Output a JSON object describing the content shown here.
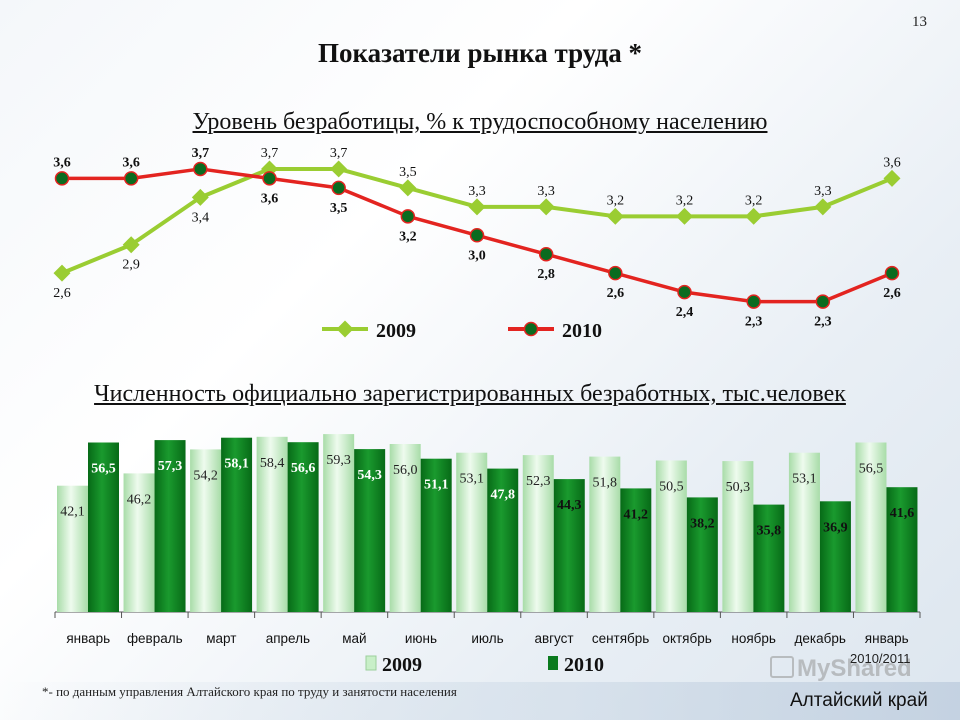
{
  "slide": {
    "page_number": "13",
    "title": "Показатели рынка труда *",
    "footnote": "*- по данным управления Алтайского края по труду и занятости населения",
    "region": "Алтайский край",
    "period": "2010/2011",
    "watermark": "MyShared"
  },
  "chart_data": [
    {
      "type": "line",
      "title": "Уровень безработицы, % к трудоспособному населению",
      "x": [
        "январь",
        "февраль",
        "март",
        "апрель",
        "май",
        "июнь",
        "июль",
        "август",
        "сентябрь",
        "октябрь",
        "ноябрь",
        "декабрь",
        "январь"
      ],
      "ylim": [
        2.0,
        3.9
      ],
      "grid": false,
      "legend": "bottom",
      "series": [
        {
          "name": "2009",
          "color": "#9acd32",
          "values": [
            2.6,
            2.9,
            3.4,
            3.7,
            3.7,
            3.5,
            3.3,
            3.3,
            3.2,
            3.2,
            3.2,
            3.3,
            3.6
          ],
          "labels": [
            "2,6",
            "2,9",
            "3,4",
            "3,7",
            "3,7",
            "3,5",
            "3,3",
            "3,3",
            "3,2",
            "3,2",
            "3,2",
            "3,3",
            "3,6"
          ]
        },
        {
          "name": "2010",
          "color": "#e32420",
          "values": [
            3.6,
            3.6,
            3.7,
            3.6,
            3.5,
            3.2,
            3.0,
            2.8,
            2.6,
            2.4,
            2.3,
            2.3,
            2.6
          ],
          "labels": [
            "3,6",
            "3,6",
            "3,7",
            "3,6",
            "3,5",
            "3,2",
            "3,0",
            "2,8",
            "2,6",
            "2,4",
            "2,3",
            "2,3",
            "2,6"
          ]
        }
      ]
    },
    {
      "type": "bar",
      "title": "Численность официально зарегистрированных безработных, тыс.человек",
      "categories": [
        "январь",
        "февраль",
        "март",
        "апрель",
        "май",
        "июнь",
        "июль",
        "август",
        "сентябрь",
        "октябрь",
        "ноябрь",
        "декабрь",
        "январь"
      ],
      "ylim": [
        0,
        62
      ],
      "grid": false,
      "legend": "bottom",
      "series": [
        {
          "name": "2009",
          "color": "#c8efc8",
          "values": [
            42.1,
            46.2,
            54.2,
            58.4,
            59.3,
            56.0,
            53.1,
            52.3,
            51.8,
            50.5,
            50.3,
            53.1,
            56.5
          ],
          "labels": [
            "42,1",
            "46,2",
            "54,2",
            "58,4",
            "59,3",
            "56,0",
            "53,1",
            "52,3",
            "51,8",
            "50,5",
            "50,3",
            "53,1",
            "56,5"
          ]
        },
        {
          "name": "2010",
          "color": "#0a7a1e",
          "values": [
            56.5,
            57.3,
            58.1,
            56.6,
            54.3,
            51.1,
            47.8,
            44.3,
            41.2,
            38.2,
            35.8,
            36.9,
            41.6
          ],
          "labels": [
            "56,5",
            "57,3",
            "58,1",
            "56,6",
            "54,3",
            "51,1",
            "47,8",
            "44,3",
            "41,2",
            "38,2",
            "35,8",
            "36,9",
            "41,6"
          ]
        }
      ]
    }
  ]
}
